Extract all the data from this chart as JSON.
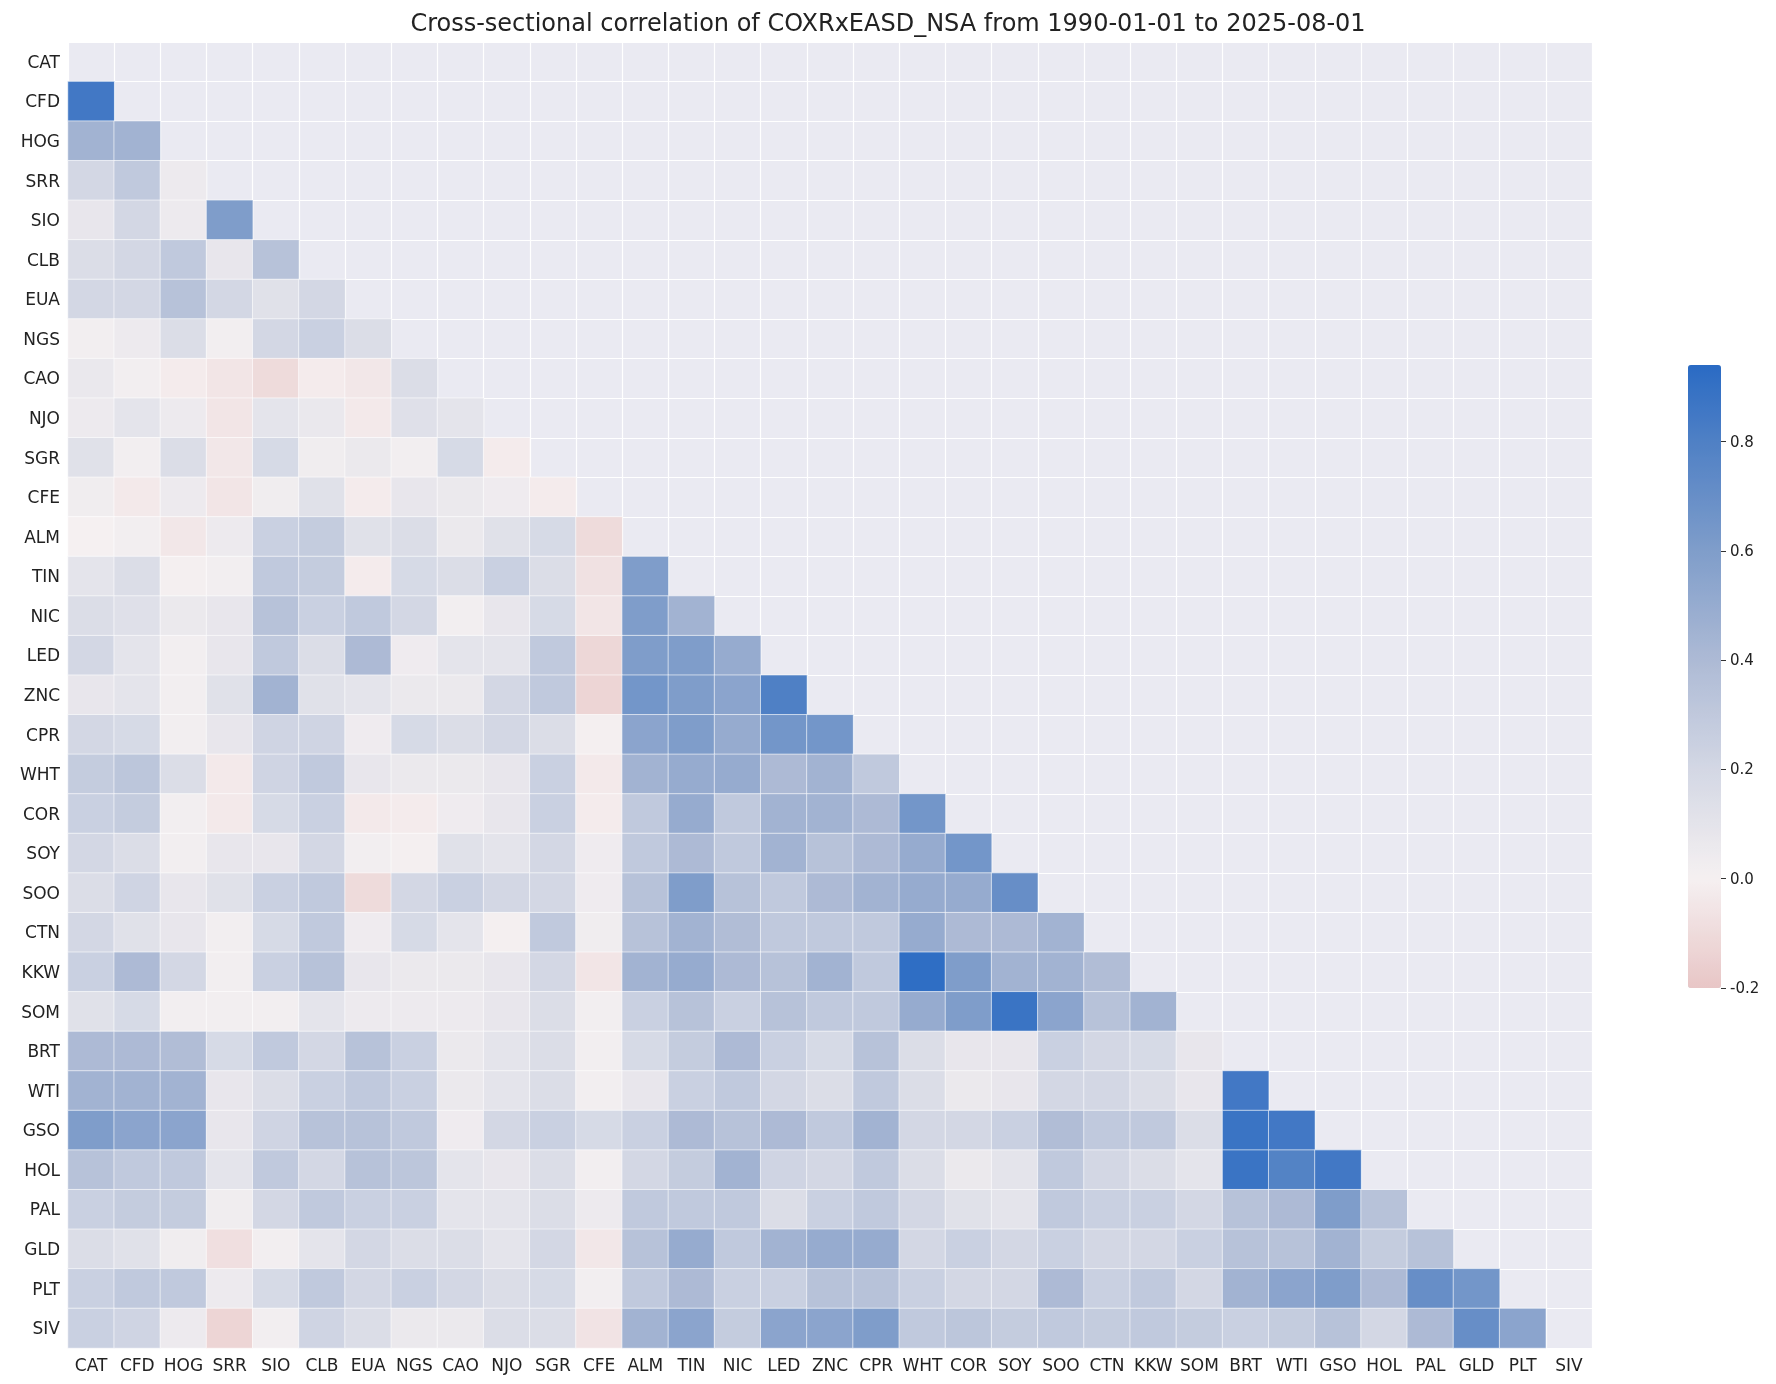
{
  "chart_data": {
    "type": "heatmap",
    "title": "Cross-sectional correlation of COXRxEASD_NSA from 1990-01-01 to 2025-08-01",
    "categories": [
      "CAT",
      "CFD",
      "HOG",
      "SRR",
      "SIO",
      "CLB",
      "EUA",
      "NGS",
      "CAO",
      "NJO",
      "SGR",
      "CFE",
      "ALM",
      "TIN",
      "NIC",
      "LED",
      "ZNC",
      "CPR",
      "WHT",
      "COR",
      "SOY",
      "SOO",
      "CTN",
      "KKW",
      "SOM",
      "BRT",
      "WTI",
      "GSO",
      "HOL",
      "PAL",
      "GLD",
      "PLT",
      "SIV"
    ],
    "y_categories": [
      "CAT",
      "CFD",
      "HOG",
      "SRR",
      "SIO",
      "CLB",
      "EUA",
      "NGS",
      "CAO",
      "NJO",
      "SGR",
      "CFE",
      "ALM",
      "TIN",
      "NIC",
      "LED",
      "ZNC",
      "CPR",
      "WHT",
      "COR",
      "SOY",
      "SOO",
      "CTN",
      "KKW",
      "SOM",
      "BRT",
      "WTI",
      "GSO",
      "HOL",
      "PAL",
      "GLD",
      "PLT",
      "SIV"
    ],
    "cells": [
      [
        null,
        null,
        null,
        null,
        null,
        null,
        null,
        null,
        null,
        null,
        null,
        null,
        null,
        null,
        null,
        null,
        null,
        null,
        null,
        null,
        null,
        null,
        null,
        null,
        null,
        null,
        null,
        null,
        null,
        null,
        null,
        null,
        null
      ],
      [
        0.85,
        null,
        null,
        null,
        null,
        null,
        null,
        null,
        null,
        null,
        null,
        null,
        null,
        null,
        null,
        null,
        null,
        null,
        null,
        null,
        null,
        null,
        null,
        null,
        null,
        null,
        null,
        null,
        null,
        null,
        null,
        null,
        null
      ],
      [
        0.45,
        0.45,
        null,
        null,
        null,
        null,
        null,
        null,
        null,
        null,
        null,
        null,
        null,
        null,
        null,
        null,
        null,
        null,
        null,
        null,
        null,
        null,
        null,
        null,
        null,
        null,
        null,
        null,
        null,
        null,
        null,
        null,
        null
      ],
      [
        0.2,
        0.3,
        0.05,
        null,
        null,
        null,
        null,
        null,
        null,
        null,
        null,
        null,
        null,
        null,
        null,
        null,
        null,
        null,
        null,
        null,
        null,
        null,
        null,
        null,
        null,
        null,
        null,
        null,
        null,
        null,
        null,
        null,
        null
      ],
      [
        0.08,
        0.2,
        0.05,
        0.6,
        null,
        null,
        null,
        null,
        null,
        null,
        null,
        null,
        null,
        null,
        null,
        null,
        null,
        null,
        null,
        null,
        null,
        null,
        null,
        null,
        null,
        null,
        null,
        null,
        null,
        null,
        null,
        null,
        null
      ],
      [
        0.15,
        0.2,
        0.3,
        0.08,
        0.35,
        null,
        null,
        null,
        null,
        null,
        null,
        null,
        null,
        null,
        null,
        null,
        null,
        null,
        null,
        null,
        null,
        null,
        null,
        null,
        null,
        null,
        null,
        null,
        null,
        null,
        null,
        null,
        null
      ],
      [
        0.2,
        0.2,
        0.35,
        0.2,
        0.12,
        0.2,
        null,
        null,
        null,
        null,
        null,
        null,
        null,
        null,
        null,
        null,
        null,
        null,
        null,
        null,
        null,
        null,
        null,
        null,
        null,
        null,
        null,
        null,
        null,
        null,
        null,
        null,
        null
      ],
      [
        0.02,
        0.05,
        0.15,
        0.02,
        0.2,
        0.25,
        0.15,
        null,
        null,
        null,
        null,
        null,
        null,
        null,
        null,
        null,
        null,
        null,
        null,
        null,
        null,
        null,
        null,
        null,
        null,
        null,
        null,
        null,
        null,
        null,
        null,
        null,
        null
      ],
      [
        0.07,
        0.02,
        -0.02,
        -0.05,
        -0.1,
        -0.02,
        -0.04,
        0.15,
        null,
        null,
        null,
        null,
        null,
        null,
        null,
        null,
        null,
        null,
        null,
        null,
        null,
        null,
        null,
        null,
        null,
        null,
        null,
        null,
        null,
        null,
        null,
        null,
        null
      ],
      [
        0.05,
        0.1,
        0.05,
        -0.05,
        0.1,
        0.07,
        -0.03,
        0.13,
        0.1,
        null,
        null,
        null,
        null,
        null,
        null,
        null,
        null,
        null,
        null,
        null,
        null,
        null,
        null,
        null,
        null,
        null,
        null,
        null,
        null,
        null,
        null,
        null,
        null
      ],
      [
        0.12,
        0.02,
        0.15,
        -0.04,
        0.18,
        0.03,
        0.06,
        0.02,
        0.18,
        -0.02,
        null,
        null,
        null,
        null,
        null,
        null,
        null,
        null,
        null,
        null,
        null,
        null,
        null,
        null,
        null,
        null,
        null,
        null,
        null,
        null,
        null,
        null,
        null
      ],
      [
        0.03,
        -0.03,
        0.05,
        -0.05,
        0.03,
        0.12,
        -0.02,
        0.08,
        0.06,
        0.04,
        -0.02,
        null,
        null,
        null,
        null,
        null,
        null,
        null,
        null,
        null,
        null,
        null,
        null,
        null,
        null,
        null,
        null,
        null,
        null,
        null,
        null,
        null,
        null
      ],
      [
        0.0,
        0.02,
        -0.04,
        0.05,
        0.25,
        0.28,
        0.12,
        0.15,
        0.06,
        0.12,
        0.18,
        -0.1,
        null,
        null,
        null,
        null,
        null,
        null,
        null,
        null,
        null,
        null,
        null,
        null,
        null,
        null,
        null,
        null,
        null,
        null,
        null,
        null,
        null
      ],
      [
        0.1,
        0.15,
        0.01,
        0.02,
        0.3,
        0.28,
        -0.02,
        0.18,
        0.15,
        0.25,
        0.15,
        -0.07,
        0.6,
        null,
        null,
        null,
        null,
        null,
        null,
        null,
        null,
        null,
        null,
        null,
        null,
        null,
        null,
        null,
        null,
        null,
        null,
        null,
        null
      ],
      [
        0.15,
        0.13,
        0.06,
        0.08,
        0.35,
        0.25,
        0.3,
        0.2,
        0.02,
        0.08,
        0.18,
        -0.05,
        0.6,
        0.45,
        null,
        null,
        null,
        null,
        null,
        null,
        null,
        null,
        null,
        null,
        null,
        null,
        null,
        null,
        null,
        null,
        null,
        null,
        null
      ],
      [
        0.2,
        0.1,
        0.02,
        0.08,
        0.3,
        0.15,
        0.4,
        0.04,
        0.1,
        0.1,
        0.3,
        -0.12,
        0.6,
        0.6,
        0.5,
        null,
        null,
        null,
        null,
        null,
        null,
        null,
        null,
        null,
        null,
        null,
        null,
        null,
        null,
        null,
        null,
        null,
        null
      ],
      [
        0.08,
        0.1,
        0.02,
        0.12,
        0.45,
        0.12,
        0.1,
        0.06,
        0.06,
        0.2,
        0.3,
        -0.13,
        0.65,
        0.6,
        0.55,
        0.8,
        null,
        null,
        null,
        null,
        null,
        null,
        null,
        null,
        null,
        null,
        null,
        null,
        null,
        null,
        null,
        null,
        null
      ],
      [
        0.2,
        0.18,
        0.02,
        0.08,
        0.22,
        0.22,
        0.04,
        0.18,
        0.15,
        0.2,
        0.15,
        0.01,
        0.55,
        0.6,
        0.5,
        0.65,
        0.65,
        null,
        null,
        null,
        null,
        null,
        null,
        null,
        null,
        null,
        null,
        null,
        null,
        null,
        null,
        null,
        null
      ],
      [
        0.28,
        0.32,
        0.15,
        -0.03,
        0.22,
        0.3,
        0.08,
        0.06,
        0.06,
        0.08,
        0.25,
        -0.03,
        0.45,
        0.5,
        0.5,
        0.4,
        0.45,
        0.3,
        null,
        null,
        null,
        null,
        null,
        null,
        null,
        null,
        null,
        null,
        null,
        null,
        null,
        null,
        null
      ],
      [
        0.25,
        0.28,
        0.02,
        -0.03,
        0.18,
        0.25,
        -0.03,
        -0.02,
        0.04,
        0.08,
        0.25,
        -0.02,
        0.3,
        0.5,
        0.3,
        0.45,
        0.45,
        0.4,
        0.65,
        null,
        null,
        null,
        null,
        null,
        null,
        null,
        null,
        null,
        null,
        null,
        null,
        null,
        null
      ],
      [
        0.2,
        0.15,
        0.02,
        0.08,
        0.08,
        0.2,
        0.02,
        0.01,
        0.12,
        0.1,
        0.2,
        0.04,
        0.3,
        0.4,
        0.3,
        0.45,
        0.35,
        0.4,
        0.5,
        0.65,
        null,
        null,
        null,
        null,
        null,
        null,
        null,
        null,
        null,
        null,
        null,
        null,
        null
      ],
      [
        0.15,
        0.22,
        0.08,
        0.12,
        0.25,
        0.3,
        -0.1,
        0.2,
        0.25,
        0.2,
        0.2,
        0.04,
        0.35,
        0.6,
        0.35,
        0.3,
        0.4,
        0.45,
        0.5,
        0.5,
        0.7,
        null,
        null,
        null,
        null,
        null,
        null,
        null,
        null,
        null,
        null,
        null,
        null
      ],
      [
        0.2,
        0.12,
        0.08,
        0.02,
        0.18,
        0.3,
        0.04,
        0.18,
        0.1,
        0.01,
        0.3,
        0.03,
        0.35,
        0.45,
        0.38,
        0.3,
        0.3,
        0.3,
        0.5,
        0.4,
        0.4,
        0.45,
        null,
        null,
        null,
        null,
        null,
        null,
        null,
        null,
        null,
        null,
        null
      ],
      [
        0.25,
        0.4,
        0.2,
        0.02,
        0.25,
        0.35,
        0.08,
        0.06,
        0.06,
        0.08,
        0.2,
        -0.05,
        0.45,
        0.5,
        0.4,
        0.35,
        0.45,
        0.3,
        0.92,
        0.6,
        0.45,
        0.45,
        0.38,
        null,
        null,
        null,
        null,
        null,
        null,
        null,
        null,
        null,
        null
      ],
      [
        0.12,
        0.18,
        0.02,
        0.02,
        0.02,
        0.1,
        0.05,
        0.05,
        0.05,
        0.08,
        0.15,
        0.02,
        0.25,
        0.35,
        0.25,
        0.35,
        0.3,
        0.3,
        0.5,
        0.6,
        0.88,
        0.55,
        0.35,
        0.45,
        null,
        null,
        null,
        null,
        null,
        null,
        null,
        null,
        null
      ],
      [
        0.4,
        0.4,
        0.38,
        0.18,
        0.3,
        0.2,
        0.35,
        0.25,
        0.06,
        0.1,
        0.15,
        0.02,
        0.18,
        0.28,
        0.4,
        0.25,
        0.18,
        0.35,
        0.15,
        0.08,
        0.08,
        0.25,
        0.2,
        0.18,
        0.08,
        null,
        null,
        null,
        null,
        null,
        null,
        null,
        null
      ],
      [
        0.45,
        0.45,
        0.45,
        0.08,
        0.15,
        0.25,
        0.3,
        0.25,
        0.06,
        0.1,
        0.15,
        0.02,
        0.08,
        0.25,
        0.3,
        0.2,
        0.15,
        0.3,
        0.15,
        0.06,
        0.08,
        0.2,
        0.2,
        0.15,
        0.08,
        0.85,
        null,
        null,
        null,
        null,
        null,
        null,
        null
      ],
      [
        0.6,
        0.55,
        0.55,
        0.08,
        0.22,
        0.35,
        0.35,
        0.3,
        0.04,
        0.2,
        0.25,
        0.18,
        0.25,
        0.4,
        0.35,
        0.4,
        0.3,
        0.45,
        0.2,
        0.2,
        0.25,
        0.38,
        0.3,
        0.3,
        0.15,
        0.88,
        0.85,
        null,
        null,
        null,
        null,
        null,
        null
      ],
      [
        0.35,
        0.3,
        0.3,
        0.1,
        0.3,
        0.2,
        0.35,
        0.32,
        0.1,
        0.08,
        0.15,
        0.02,
        0.2,
        0.28,
        0.45,
        0.22,
        0.2,
        0.3,
        0.15,
        0.06,
        0.1,
        0.3,
        0.2,
        0.15,
        0.1,
        0.88,
        0.78,
        0.85,
        null,
        null,
        null,
        null,
        null
      ],
      [
        0.25,
        0.28,
        0.28,
        0.03,
        0.2,
        0.3,
        0.25,
        0.25,
        0.1,
        0.1,
        0.15,
        0.05,
        0.3,
        0.3,
        0.3,
        0.15,
        0.25,
        0.3,
        0.2,
        0.12,
        0.1,
        0.3,
        0.25,
        0.25,
        0.2,
        0.35,
        0.4,
        0.6,
        0.35,
        null,
        null,
        null,
        null
      ],
      [
        0.15,
        0.12,
        0.03,
        -0.08,
        0.02,
        0.1,
        0.2,
        0.15,
        0.15,
        0.1,
        0.2,
        -0.04,
        0.35,
        0.5,
        0.3,
        0.45,
        0.5,
        0.5,
        0.2,
        0.25,
        0.2,
        0.25,
        0.2,
        0.2,
        0.25,
        0.35,
        0.35,
        0.45,
        0.28,
        0.35,
        null,
        null,
        null
      ],
      [
        0.25,
        0.3,
        0.3,
        0.05,
        0.18,
        0.3,
        0.2,
        0.25,
        0.2,
        0.15,
        0.18,
        0.02,
        0.3,
        0.4,
        0.25,
        0.25,
        0.35,
        0.35,
        0.25,
        0.2,
        0.2,
        0.4,
        0.25,
        0.3,
        0.2,
        0.45,
        0.55,
        0.6,
        0.4,
        0.7,
        0.65,
        null,
        null
      ],
      [
        0.25,
        0.22,
        0.05,
        -0.13,
        0.02,
        0.22,
        0.15,
        0.06,
        0.06,
        0.15,
        0.15,
        -0.06,
        0.45,
        0.55,
        0.28,
        0.55,
        0.55,
        0.6,
        0.3,
        0.32,
        0.28,
        0.3,
        0.28,
        0.3,
        0.28,
        0.25,
        0.28,
        0.35,
        0.2,
        0.4,
        0.7,
        0.55,
        null
      ]
    ],
    "clim": [
      -0.2,
      0.94
    ],
    "cticks": [
      -0.2,
      {
        "value": 0,
        "label": "0.0"
      },
      0.2,
      0.4,
      0.6,
      0.8
    ],
    "grid": true
  }
}
